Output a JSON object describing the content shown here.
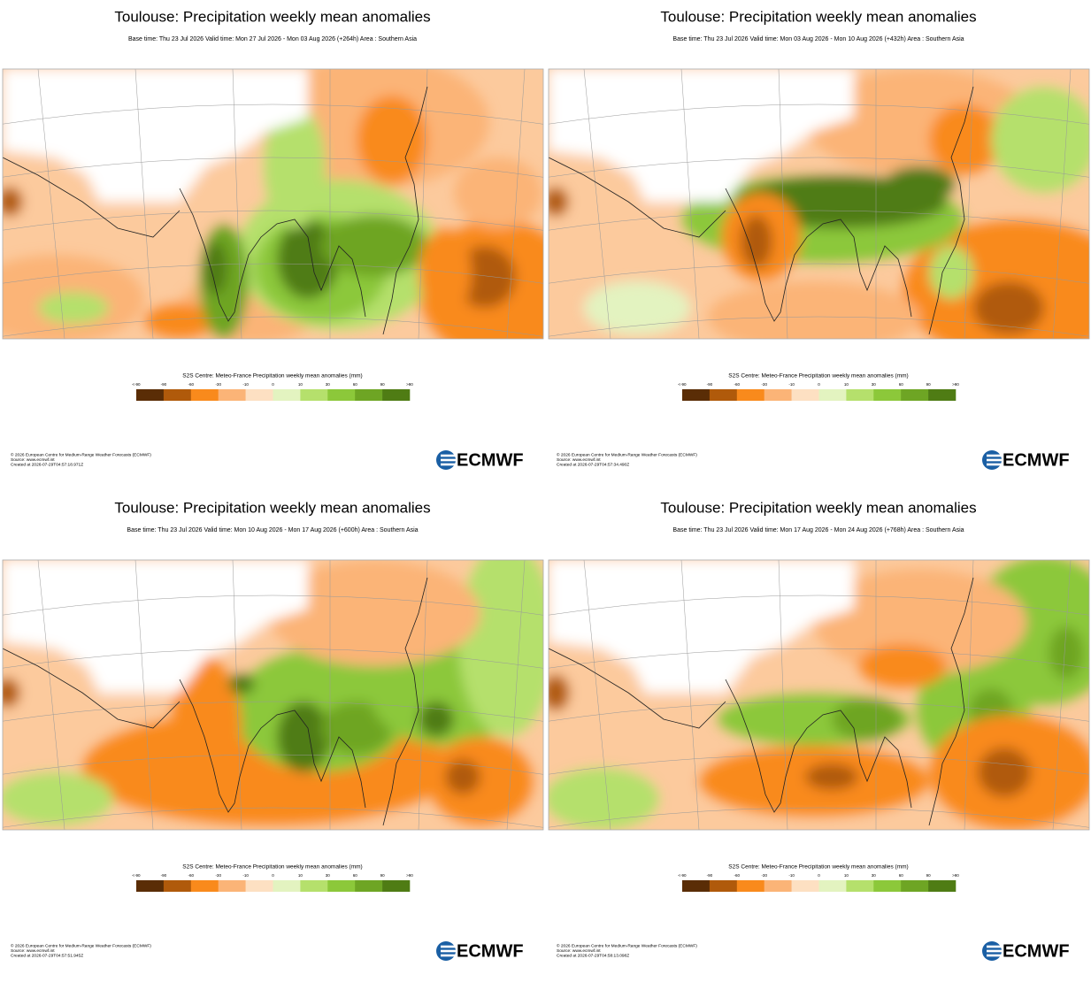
{
  "panels": [
    {
      "title": "Toulouse: Precipitation weekly mean anomalies",
      "subtitle": "Base time: Thu 23 Jul 2026 Valid time: Mon 27 Jul 2026 - Mon 03 Aug 2026 (+264h) Area : Southern Asia",
      "footer": [
        "© 2026 European Centre for Medium-Range Weather Forecasts (ECMWF)",
        "Source: www.ecmwf.int",
        "Created at 2026-07-29T04:57:18.971Z"
      ]
    },
    {
      "title": "Toulouse: Precipitation weekly mean anomalies",
      "subtitle": "Base time: Thu 23 Jul 2026 Valid time: Mon 03 Aug 2026 - Mon 10 Aug 2026 (+432h) Area : Southern Asia",
      "footer": [
        "© 2026 European Centre for Medium-Range Weather Forecasts (ECMWF)",
        "Source: www.ecmwf.int",
        "Created at 2026-07-29T04:57:34.490Z"
      ]
    },
    {
      "title": "Toulouse: Precipitation weekly mean anomalies",
      "subtitle": "Base time: Thu 23 Jul 2026 Valid time: Mon 10 Aug 2026 - Mon 17 Aug 2026 (+600h) Area : Southern Asia",
      "footer": [
        "© 2026 European Centre for Medium-Range Weather Forecasts (ECMWF)",
        "Source: www.ecmwf.int",
        "Created at 2026-07-29T04:57:51.945Z"
      ]
    },
    {
      "title": "Toulouse: Precipitation weekly mean anomalies",
      "subtitle": "Base time: Thu 23 Jul 2026 Valid time: Mon 17 Aug 2026 - Mon 24 Aug 2026 (+768h) Area : Southern Asia",
      "footer": [
        "© 2026 European Centre for Medium-Range Weather Forecasts (ECMWF)",
        "Source: www.ecmwf.int",
        "Created at 2026-07-29T04:58:13.098Z"
      ]
    }
  ],
  "legend": {
    "title": "S2S Centre: Meteo-France Precipitation weekly mean anomalies (mm)",
    "labels": [
      "<-90",
      "-90",
      "-60",
      "-30",
      "-10",
      "0",
      "10",
      "30",
      "60",
      "90",
      ">90"
    ],
    "colors": [
      "#5a2d06",
      "#b05a0b",
      "#f98a1c",
      "#fbb477",
      "#fde0c2",
      "#e3f3c0",
      "#b5e06c",
      "#8cc83a",
      "#6ea524",
      "#4f7c14"
    ]
  },
  "logo": "ECMWF"
}
